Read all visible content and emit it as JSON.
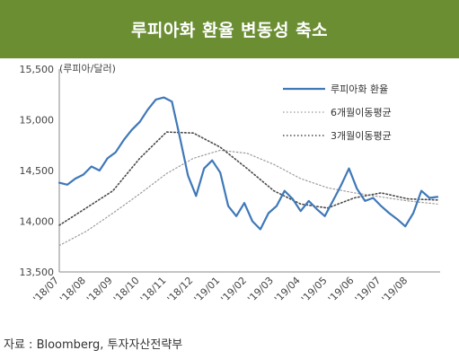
{
  "header": {
    "title": "루피아화 환율 변동성 축소"
  },
  "footer": {
    "source": "자료 : Bloomberg, 투자자산전략부"
  },
  "colors": {
    "banner": "#6b8e33",
    "series_main": "#3f78b8",
    "series_ma6": "#9a9a9a",
    "series_ma3": "#4a4a4a"
  },
  "chart_data": {
    "type": "line",
    "title": "루피아화 환율 변동성 축소",
    "unit_label": "(루피아/달러)",
    "ylim": [
      13500,
      15500
    ],
    "yticks": [
      13500,
      14000,
      14500,
      15000,
      15500
    ],
    "ytick_labels": [
      "13,500",
      "14,000",
      "14,500",
      "15,000",
      "15,500"
    ],
    "xlim": [
      0,
      14.2
    ],
    "xtick_labels": [
      "'18/07",
      "'18/08",
      "'18/09",
      "'18/10",
      "'18/11",
      "'18/12",
      "'19/01",
      "'19/02",
      "'19/03",
      "'19/04",
      "'19/05",
      "'19/06",
      "'19/07",
      "'19/08"
    ],
    "legend_position": "top-right",
    "grid": false,
    "series": [
      {
        "name": "루피아화 환율",
        "style": "solid",
        "x": [
          0,
          0.3,
          0.6,
          0.9,
          1.2,
          1.5,
          1.8,
          2.1,
          2.4,
          2.7,
          3.0,
          3.3,
          3.6,
          3.9,
          4.2,
          4.5,
          4.8,
          5.1,
          5.4,
          5.7,
          6.0,
          6.3,
          6.6,
          6.9,
          7.2,
          7.5,
          7.8,
          8.1,
          8.4,
          8.7,
          9.0,
          9.3,
          9.6,
          9.9,
          10.2,
          10.5,
          10.8,
          11.1,
          11.4,
          11.7,
          12.0,
          12.3,
          12.6,
          12.9,
          13.2,
          13.5,
          13.8,
          14.1
        ],
        "values": [
          14380,
          14360,
          14420,
          14460,
          14540,
          14500,
          14620,
          14680,
          14800,
          14900,
          14980,
          15100,
          15200,
          15220,
          15180,
          14820,
          14450,
          14250,
          14520,
          14600,
          14480,
          14150,
          14050,
          14180,
          14000,
          13920,
          14080,
          14150,
          14300,
          14220,
          14100,
          14200,
          14120,
          14050,
          14200,
          14350,
          14520,
          14320,
          14200,
          14230,
          14150,
          14080,
          14020,
          13950,
          14080,
          14300,
          14230,
          14240
        ]
      },
      {
        "name": "6개월이동평균",
        "style": "dotted-light",
        "x": [
          0,
          1,
          2,
          3,
          4,
          5,
          6,
          7,
          8,
          9,
          10,
          11,
          12,
          13,
          14.1
        ],
        "values": [
          13760,
          13900,
          14080,
          14270,
          14470,
          14620,
          14700,
          14670,
          14560,
          14420,
          14330,
          14280,
          14240,
          14200,
          14170
        ]
      },
      {
        "name": "3개월이동평균",
        "style": "dotted-dark",
        "x": [
          0,
          1,
          2,
          3,
          4,
          5,
          6,
          7,
          8,
          9,
          10,
          11,
          12,
          13,
          14.1
        ],
        "values": [
          13960,
          14130,
          14300,
          14620,
          14880,
          14870,
          14730,
          14520,
          14300,
          14170,
          14130,
          14230,
          14280,
          14220,
          14210
        ]
      }
    ]
  }
}
